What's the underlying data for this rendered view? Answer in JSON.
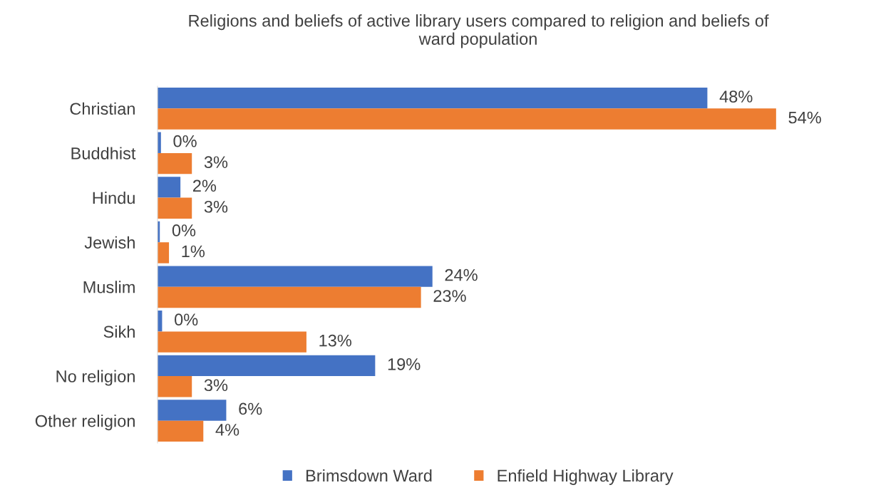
{
  "chart_data": {
    "type": "bar",
    "orientation": "horizontal",
    "title": "Religions and beliefs of active library users compared to religion and beliefs of\nward population",
    "categories": [
      "Christian",
      "Buddhist",
      "Hindu",
      "Jewish",
      "Muslim",
      "Sikh",
      "No religion",
      "Other religion"
    ],
    "series": [
      {
        "name": "Brimsdown Ward",
        "color": "#4472c4",
        "values": [
          48,
          0.3,
          2,
          0.2,
          24,
          0.4,
          19,
          6
        ],
        "value_labels": [
          "48%",
          "0%",
          "2%",
          "0%",
          "24%",
          "0%",
          "19%",
          "6%"
        ]
      },
      {
        "name": "Enfield Highway Library",
        "color": "#ed7d31",
        "values": [
          54,
          3,
          3,
          1,
          23,
          13,
          3,
          4
        ],
        "value_labels": [
          "54%",
          "3%",
          "3%",
          "1%",
          "23%",
          "13%",
          "3%",
          "4%"
        ]
      }
    ],
    "legend": "bottom",
    "grid": false
  }
}
